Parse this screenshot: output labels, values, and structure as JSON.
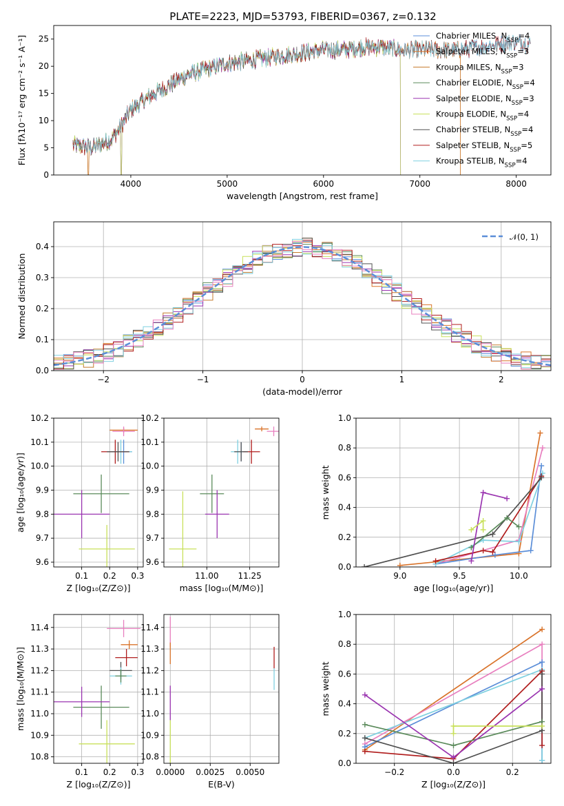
{
  "chart_data": [
    {
      "type": "line",
      "title": "PLATE=2223, MJD=53793, FIBERID=0367, z=0.132",
      "xlabel": "wavelength [Angstrom, rest frame]",
      "ylabel": "Flux [fλ10⁻¹⁷ erg cm⁻² s⁻¹ A⁻¹]",
      "xlim": [
        3200,
        8360
      ],
      "ylim": [
        0,
        27.5
      ],
      "xticks": [
        4000,
        5000,
        6000,
        7000,
        8000
      ],
      "yticks": [
        0,
        5,
        10,
        15,
        20,
        25
      ],
      "grid": false,
      "legend_loc": "right",
      "continuum": {
        "x": [
          3400,
          3600,
          3800,
          3900,
          4000,
          4200,
          4400,
          4600,
          4800,
          5000,
          5200,
          5400,
          5600,
          5800,
          6000,
          6200,
          6400,
          6600,
          6800,
          7000,
          7200,
          7400,
          7600,
          7800,
          8000,
          8150
        ],
        "y": [
          5.5,
          5.0,
          6.5,
          9.0,
          12.0,
          14.5,
          16.5,
          18.5,
          19.5,
          20.5,
          21.0,
          21.5,
          22.0,
          22.5,
          23.0,
          23.0,
          23.5,
          23.5,
          23.0,
          23.0,
          23.0,
          23.0,
          23.5,
          24.0,
          24.5,
          24.0
        ]
      },
      "series": [
        {
          "name": "Chabrier MILES, N$_{SSP}$=4",
          "color": "#5b8ed8",
          "end_x": 8150,
          "drop_x": null
        },
        {
          "name": "Salpeter MILES, N$_{SSP}$=3",
          "color": "#d9732a",
          "end_x": 7420,
          "drop_x": 3560
        },
        {
          "name": "Kroupa MILES, N$_{SSP}$=3",
          "color": "#c47a2b",
          "end_x": 7420,
          "drop_x": 3560
        },
        {
          "name": "Chabrier ELODIE, N$_{SSP}$=4",
          "color": "#5a8a5a",
          "end_x": 6800,
          "drop_x": 3900
        },
        {
          "name": "Salpeter ELODIE, N$_{SSP}$=3",
          "color": "#9a34b0",
          "end_x": 6800,
          "drop_x": 3900
        },
        {
          "name": "Kroupa ELODIE, N$_{SSP}$=4",
          "color": "#c8e05a",
          "end_x": 6800,
          "drop_x": 3900
        },
        {
          "name": "Chabrier STELIB, N$_{SSP}$=4",
          "color": "#505050",
          "end_x": 8150,
          "drop_x": null
        },
        {
          "name": "Salpeter STELIB, N$_{SSP}$=5",
          "color": "#b01c1c",
          "end_x": 8150,
          "drop_x": null
        },
        {
          "name": "Kroupa STELIB, N$_{SSP}$=4",
          "color": "#7fd0e0",
          "end_x": 8150,
          "drop_x": null
        }
      ]
    },
    {
      "type": "line",
      "subtype": "step-histogram",
      "xlabel": "(data-model)/error",
      "ylabel": "Normed distribution",
      "xlim": [
        -2.5,
        2.5
      ],
      "ylim": [
        0,
        0.48
      ],
      "xticks": [
        -2,
        -1,
        0,
        1,
        2
      ],
      "yticks": [
        0.0,
        0.1,
        0.2,
        0.3,
        0.4
      ],
      "grid": true,
      "legend": {
        "label": "𝒩(0, 1)",
        "loc": "upper right",
        "color": "#5b8ed8"
      },
      "bin_width": 0.1,
      "series_colors": [
        "#5b8ed8",
        "#d9732a",
        "#c47a2b",
        "#5a8a5a",
        "#9a34b0",
        "#c8e05a",
        "#505050",
        "#b01c1c",
        "#7fd0e0",
        "#e87fbf"
      ]
    },
    {
      "type": "scatter",
      "subtype": "errorbar",
      "xlabel": "Z [log₁₀(Z/Z⊙)]",
      "ylabel": "age  [log₁₀(age/yr)]",
      "xlim": [
        0.0,
        0.32
      ],
      "ylim": [
        9.58,
        10.2
      ],
      "xticks": [
        0.1,
        0.2,
        0.3
      ],
      "yticks": [
        9.6,
        9.7,
        9.8,
        9.9,
        10.0,
        10.1,
        10.2
      ],
      "grid": true,
      "points": [
        {
          "x": 0.25,
          "y": 10.15,
          "xerr": 0.05,
          "yerr": 0.01,
          "color": "#d9732a"
        },
        {
          "x": 0.25,
          "y": 10.145,
          "xerr": 0.04,
          "yerr": 0.02,
          "color": "#e87fbf"
        },
        {
          "x": 0.25,
          "y": 10.06,
          "xerr": 0.03,
          "yerr": 0.05,
          "color": "#5b8ed8"
        },
        {
          "x": 0.24,
          "y": 10.06,
          "xerr": 0.04,
          "yerr": 0.05,
          "color": "#7fd0e0"
        },
        {
          "x": 0.22,
          "y": 10.06,
          "xerr": 0.05,
          "yerr": 0.05,
          "color": "#b01c1c"
        },
        {
          "x": 0.23,
          "y": 10.06,
          "xerr": 0.04,
          "yerr": 0.04,
          "color": "#505050"
        },
        {
          "x": 0.17,
          "y": 9.885,
          "xerr": 0.1,
          "yerr": 0.08,
          "color": "#5a8a5a"
        },
        {
          "x": 0.1,
          "y": 9.8,
          "xerr": 0.1,
          "yerr": 0.1,
          "color": "#9a34b0"
        },
        {
          "x": 0.19,
          "y": 9.655,
          "xerr": 0.1,
          "yerr": 0.1,
          "color": "#c8e05a"
        }
      ]
    },
    {
      "type": "scatter",
      "subtype": "errorbar",
      "xlabel": "mass [log₁₀(M/M⊙)]",
      "ylabel": "",
      "xlim": [
        10.75,
        11.42
      ],
      "ylim": [
        9.58,
        10.2
      ],
      "xticks": [
        11.0,
        11.25
      ],
      "yticks": [
        9.6,
        9.7,
        9.8,
        9.9,
        10.0,
        10.1,
        10.2
      ],
      "grid": true,
      "points": [
        {
          "x": 11.32,
          "y": 10.155,
          "xerr": 0.04,
          "yerr": 0.01,
          "color": "#d9732a"
        },
        {
          "x": 11.39,
          "y": 10.145,
          "xerr": 0.04,
          "yerr": 0.02,
          "color": "#e87fbf"
        },
        {
          "x": 11.2,
          "y": 10.06,
          "xerr": 0.04,
          "yerr": 0.04,
          "color": "#5b8ed8"
        },
        {
          "x": 11.18,
          "y": 10.06,
          "xerr": 0.04,
          "yerr": 0.05,
          "color": "#7fd0e0"
        },
        {
          "x": 11.26,
          "y": 10.06,
          "xerr": 0.05,
          "yerr": 0.05,
          "color": "#b01c1c"
        },
        {
          "x": 11.2,
          "y": 10.06,
          "xerr": 0.04,
          "yerr": 0.04,
          "color": "#505050"
        },
        {
          "x": 11.03,
          "y": 9.885,
          "xerr": 0.07,
          "yerr": 0.08,
          "color": "#5a8a5a"
        },
        {
          "x": 11.06,
          "y": 9.8,
          "xerr": 0.07,
          "yerr": 0.1,
          "color": "#9a34b0"
        },
        {
          "x": 10.86,
          "y": 9.655,
          "xerr": 0.08,
          "yerr": 0.24,
          "color": "#c8e05a"
        }
      ]
    },
    {
      "type": "line",
      "xlabel": "age  [log₁₀(age/yr)]",
      "ylabel": "mass weight",
      "xlim": [
        8.63,
        10.27
      ],
      "ylim": [
        0,
        1.0
      ],
      "xticks": [
        9.0,
        9.5,
        10.0
      ],
      "yticks": [
        0.0,
        0.2,
        0.4,
        0.6,
        0.8,
        1.0
      ],
      "grid": true,
      "series": [
        {
          "color": "#d9732a",
          "x": [
            9.0,
            10.0,
            10.18
          ],
          "y": [
            0.01,
            0.09,
            0.9
          ]
        },
        {
          "color": "#e87fbf",
          "x": [
            9.3,
            10.0,
            10.2
          ],
          "y": [
            0.02,
            0.18,
            0.8
          ]
        },
        {
          "color": "#5b8ed8",
          "x": [
            9.3,
            9.8,
            10.1,
            10.19
          ],
          "y": [
            0.02,
            0.08,
            0.11,
            0.68
          ]
        },
        {
          "color": "#7fd0e0",
          "x": [
            9.3,
            9.7,
            10.0,
            10.2
          ],
          "y": [
            0.02,
            0.18,
            0.17,
            0.63
          ]
        },
        {
          "color": "#b01c1c",
          "x": [
            9.3,
            9.7,
            9.78,
            10.19
          ],
          "y": [
            0.04,
            0.11,
            0.1,
            0.61
          ]
        },
        {
          "color": "#505050",
          "x": [
            8.7,
            9.78,
            10.19
          ],
          "y": [
            0.0,
            0.22,
            0.6
          ]
        },
        {
          "color": "#5a8a5a",
          "x": [
            9.6,
            9.9,
            10.0
          ],
          "y": [
            0.13,
            0.33,
            0.27
          ]
        },
        {
          "color": "#9a34b0",
          "x": [
            9.6,
            9.7,
            9.9
          ],
          "y": [
            0.04,
            0.5,
            0.46
          ]
        },
        {
          "color": "#c8e05a",
          "x": [
            9.6,
            9.7,
            9.7
          ],
          "y": [
            0.25,
            0.31,
            0.25
          ]
        }
      ]
    },
    {
      "type": "scatter",
      "subtype": "errorbar",
      "xlabel": "Z [log₁₀(Z/Z⊙)]",
      "ylabel": "mass [log₁₀(M/M⊙)]",
      "xlim": [
        0.0,
        0.32
      ],
      "ylim": [
        10.77,
        11.46
      ],
      "xticks": [
        0.1,
        0.2,
        0.3
      ],
      "yticks": [
        10.8,
        10.9,
        11.0,
        11.1,
        11.2,
        11.3,
        11.4
      ],
      "grid": true,
      "points": [
        {
          "x": 0.27,
          "y": 11.32,
          "xerr": 0.03,
          "yerr": 0.02,
          "color": "#d9732a"
        },
        {
          "x": 0.25,
          "y": 11.395,
          "xerr": 0.06,
          "yerr": 0.04,
          "color": "#e87fbf"
        },
        {
          "x": 0.26,
          "y": 11.26,
          "xerr": 0.04,
          "yerr": 0.04,
          "color": "#b01c1c"
        },
        {
          "x": 0.24,
          "y": 11.2,
          "xerr": 0.04,
          "yerr": 0.04,
          "color": "#505050"
        },
        {
          "x": 0.24,
          "y": 11.175,
          "xerr": 0.04,
          "yerr": 0.04,
          "color": "#7fd0e0"
        },
        {
          "x": 0.24,
          "y": 11.175,
          "xerr": 0.02,
          "yerr": 0.03,
          "color": "#5a8a5a"
        },
        {
          "x": 0.17,
          "y": 11.03,
          "xerr": 0.1,
          "yerr": 0.1,
          "color": "#5a8a5a"
        },
        {
          "x": 0.1,
          "y": 11.055,
          "xerr": 0.1,
          "yerr": 0.07,
          "color": "#9a34b0"
        },
        {
          "x": 0.19,
          "y": 10.86,
          "xerr": 0.1,
          "yerr": 0.11,
          "color": "#c8e05a"
        }
      ]
    },
    {
      "type": "scatter",
      "subtype": "errorbar",
      "xlabel": "E(B-V)",
      "ylabel": "",
      "xlim": [
        -0.0004,
        0.0068
      ],
      "ylim": [
        10.77,
        11.46
      ],
      "xticks": [
        0.0,
        0.0025,
        0.005
      ],
      "xticklabels": [
        "0.0000",
        "0.0025",
        "0.0050"
      ],
      "yticks": [
        10.8,
        10.9,
        11.0,
        11.1,
        11.2,
        11.3,
        11.4
      ],
      "grid": true,
      "points": [
        {
          "x": 0.0,
          "y": 11.38,
          "xerr": 0,
          "yerr": 0.07,
          "color": "#e87fbf"
        },
        {
          "x": 0.0,
          "y": 11.28,
          "xerr": 0,
          "yerr": 0.05,
          "color": "#d9732a"
        },
        {
          "x": 0.0,
          "y": 11.05,
          "xerr": 0,
          "yerr": 0.08,
          "color": "#9a34b0"
        },
        {
          "x": 0.0,
          "y": 10.87,
          "xerr": 0,
          "yerr": 0.1,
          "color": "#c8e05a"
        },
        {
          "x": 0.0065,
          "y": 11.26,
          "xerr": 0,
          "yerr": 0.05,
          "color": "#b01c1c"
        },
        {
          "x": 0.0065,
          "y": 11.16,
          "xerr": 0,
          "yerr": 0.05,
          "color": "#7fd0e0"
        }
      ]
    },
    {
      "type": "line",
      "xlabel": "Z [log₁₀(Z/Z⊙)]",
      "ylabel": "mass weight",
      "xlim": [
        -0.33,
        0.33
      ],
      "ylim": [
        0,
        1.0
      ],
      "xticks": [
        -0.2,
        0.0,
        0.2
      ],
      "yticks": [
        0.0,
        0.2,
        0.4,
        0.6,
        0.8,
        1.0
      ],
      "grid": true,
      "series": [
        {
          "color": "#d9732a",
          "x": [
            -0.3,
            0.3
          ],
          "y": [
            0.09,
            0.9
          ]
        },
        {
          "color": "#e87fbf",
          "x": [
            -0.3,
            0.3,
            0.3
          ],
          "y": [
            0.13,
            0.8,
            0.02
          ]
        },
        {
          "color": "#5b8ed8",
          "x": [
            -0.3,
            0.3,
            0.3
          ],
          "y": [
            0.11,
            0.68,
            0.02
          ]
        },
        {
          "color": "#7fd0e0",
          "x": [
            -0.3,
            0.3,
            0.3
          ],
          "y": [
            0.17,
            0.63,
            0.02
          ]
        },
        {
          "color": "#b01c1c",
          "x": [
            -0.3,
            0.0,
            0.3,
            0.3
          ],
          "y": [
            0.08,
            0.03,
            0.62,
            0.12
          ]
        },
        {
          "color": "#505050",
          "x": [
            -0.3,
            0.0,
            0.3,
            0.3
          ],
          "y": [
            0.17,
            0.0,
            0.22,
            0.6
          ]
        },
        {
          "color": "#5a8a5a",
          "x": [
            -0.3,
            0.0,
            0.3
          ],
          "y": [
            0.26,
            0.12,
            0.28
          ]
        },
        {
          "color": "#9a34b0",
          "x": [
            -0.3,
            0.0,
            0.3
          ],
          "y": [
            0.46,
            0.04,
            0.5
          ]
        },
        {
          "color": "#c8e05a",
          "x": [
            0.0,
            0.0,
            0.3
          ],
          "y": [
            0.2,
            0.25,
            0.25
          ]
        }
      ]
    }
  ]
}
